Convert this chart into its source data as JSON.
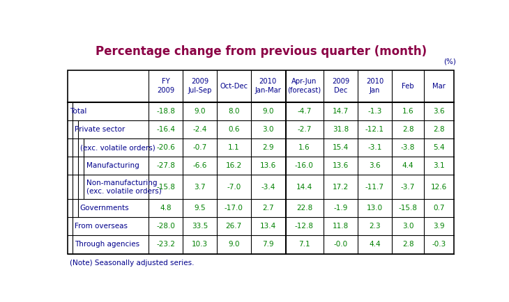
{
  "title": "Percentage change from previous quarter (month)",
  "title_color": "#8B0045",
  "unit_label": "(%)",
  "unit_color": "#00008B",
  "note": "(Note) Seasonally adjusted series.",
  "note_color": "#00008B",
  "col_header_color": "#00008B",
  "col_headers": [
    "FY\n2009",
    "2009\nJul-Sep",
    "Oct-Dec",
    "2010\nJan-Mar",
    "Apr-Jun\n(forecast)",
    "2009\nDec",
    "2010\nJan",
    "Feb",
    "Mar"
  ],
  "rows": [
    {
      "label": "Total",
      "indent": 0,
      "values": [
        "-18.8",
        "9.0",
        "8.0",
        "9.0",
        "-4.7",
        "14.7",
        "-1.3",
        "1.6",
        "3.6"
      ],
      "value_colors": [
        "#008000",
        "#008000",
        "#008000",
        "#008000",
        "#008000",
        "#008000",
        "#008000",
        "#008000",
        "#008000"
      ]
    },
    {
      "label": "Private sector",
      "indent": 1,
      "values": [
        "-16.4",
        "-2.4",
        "0.6",
        "3.0",
        "-2.7",
        "31.8",
        "-12.1",
        "2.8",
        "2.8"
      ],
      "value_colors": [
        "#008000",
        "#008000",
        "#008000",
        "#008000",
        "#008000",
        "#008000",
        "#008000",
        "#008000",
        "#008000"
      ]
    },
    {
      "label": "(exc. volatile orders)",
      "indent": 2,
      "values": [
        "-20.6",
        "-0.7",
        "1.1",
        "2.9",
        "1.6",
        "15.4",
        "-3.1",
        "-3.8",
        "5.4"
      ],
      "value_colors": [
        "#008000",
        "#008000",
        "#008000",
        "#008000",
        "#008000",
        "#008000",
        "#008000",
        "#008000",
        "#008000"
      ]
    },
    {
      "label": "Manufacturing",
      "indent": 3,
      "values": [
        "-27.8",
        "-6.6",
        "16.2",
        "13.6",
        "-16.0",
        "13.6",
        "3.6",
        "4.4",
        "3.1"
      ],
      "value_colors": [
        "#008000",
        "#008000",
        "#008000",
        "#008000",
        "#008000",
        "#008000",
        "#008000",
        "#008000",
        "#008000"
      ]
    },
    {
      "label": "Non-manufacturing\n(exc. volatile orders)",
      "indent": 3,
      "values": [
        "-15.8",
        "3.7",
        "-7.0",
        "-3.4",
        "14.4",
        "17.2",
        "-11.7",
        "-3.7",
        "12.6"
      ],
      "value_colors": [
        "#008000",
        "#008000",
        "#008000",
        "#008000",
        "#008000",
        "#008000",
        "#008000",
        "#008000",
        "#008000"
      ]
    },
    {
      "label": "Governments",
      "indent": 2,
      "values": [
        "4.8",
        "9.5",
        "-17.0",
        "2.7",
        "22.8",
        "-1.9",
        "13.0",
        "-15.8",
        "0.7"
      ],
      "value_colors": [
        "#008000",
        "#008000",
        "#008000",
        "#008000",
        "#008000",
        "#008000",
        "#008000",
        "#008000",
        "#008000"
      ]
    },
    {
      "label": "From overseas",
      "indent": 1,
      "values": [
        "-28.0",
        "33.5",
        "26.7",
        "13.4",
        "-12.8",
        "11.8",
        "2.3",
        "3.0",
        "3.9"
      ],
      "value_colors": [
        "#008000",
        "#008000",
        "#008000",
        "#008000",
        "#008000",
        "#008000",
        "#008000",
        "#008000",
        "#008000"
      ]
    },
    {
      "label": "Through agencies",
      "indent": 1,
      "values": [
        "-23.2",
        "10.3",
        "9.0",
        "7.9",
        "7.1",
        "-0.0",
        "4.4",
        "2.8",
        "-0.3"
      ],
      "value_colors": [
        "#008000",
        "#008000",
        "#008000",
        "#008000",
        "#008000",
        "#008000",
        "#008000",
        "#008000",
        "#008000"
      ]
    }
  ],
  "label_color": "#00008B",
  "border_color": "#000000",
  "bg_color": "#FFFFFF",
  "double_line_after_col": 4
}
